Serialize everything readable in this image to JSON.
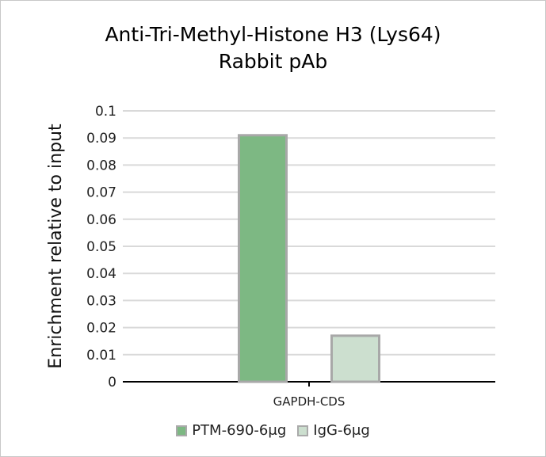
{
  "chart_data": {
    "type": "bar",
    "title": [
      "Anti-Tri-Methyl-Histone H3 (Lys64)",
      "Rabbit pAb"
    ],
    "xlabel": "",
    "ylabel": "Enrichment relative to input",
    "categories": [
      "GAPDH-CDS"
    ],
    "ylim": [
      0,
      0.1
    ],
    "yticks": [
      "0",
      "0.01",
      "0.02",
      "0.03",
      "0.04",
      "0.05",
      "0.06",
      "0.07",
      "0.08",
      "0.09",
      "0.1"
    ],
    "grid": true,
    "legend_position": "bottom",
    "series": [
      {
        "name": "PTM-690-6μg",
        "values": [
          0.091
        ],
        "color": "#7db883"
      },
      {
        "name": "IgG-6μg",
        "values": [
          0.017
        ],
        "color": "#ccdfcf"
      }
    ]
  }
}
